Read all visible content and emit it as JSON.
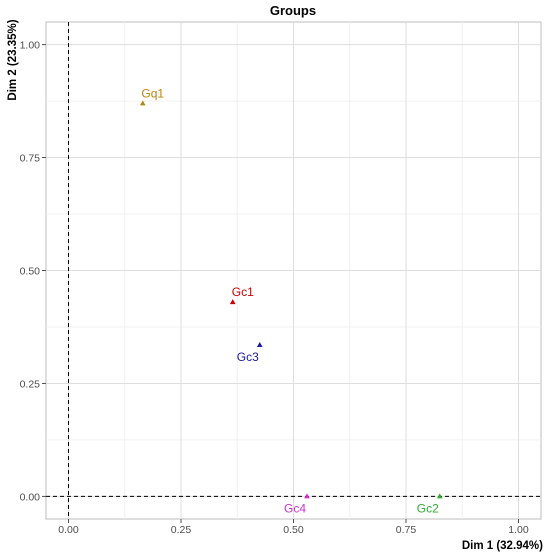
{
  "chart_data": {
    "type": "scatter",
    "title": "Groups",
    "xlabel": "Dim 1 (32.94%)",
    "ylabel": "Dim 2 (23.35%)",
    "xlim": [
      -0.05,
      1.05
    ],
    "ylim": [
      -0.05,
      1.05
    ],
    "x_ticks": [
      "0.00",
      "0.25",
      "0.50",
      "0.75",
      "1.00"
    ],
    "y_ticks": [
      "0.00",
      "0.25",
      "0.50",
      "0.75",
      "1.00"
    ],
    "grid": true,
    "reference_lines": {
      "x": 0,
      "y": 0,
      "style": "dashed"
    },
    "points": [
      {
        "label": "Gq1",
        "x": 0.165,
        "y": 0.87,
        "color": "#b8860b"
      },
      {
        "label": "Gc1",
        "x": 0.365,
        "y": 0.43,
        "color": "#cc0000"
      },
      {
        "label": "Gc3",
        "x": 0.425,
        "y": 0.335,
        "color": "#1a1aa6"
      },
      {
        "label": "Gc4",
        "x": 0.53,
        "y": 0.0,
        "color": "#cc33cc"
      },
      {
        "label": "Gc2",
        "x": 0.825,
        "y": 0.0,
        "color": "#33aa33"
      }
    ]
  }
}
